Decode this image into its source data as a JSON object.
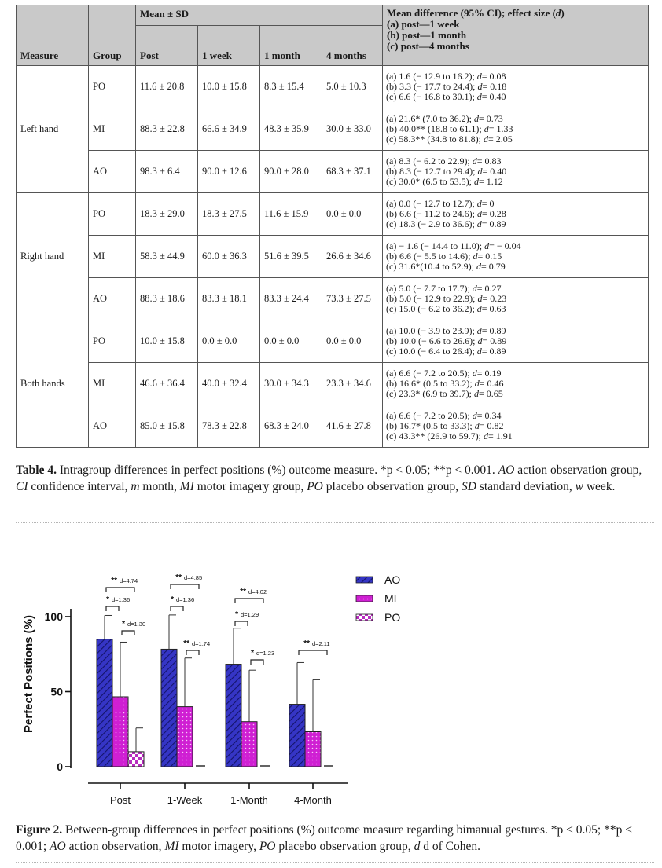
{
  "table": {
    "headers": {
      "measure": "Measure",
      "group": "Group",
      "mean_sd": "Mean ± SD",
      "post": "Post",
      "week1": "1 week",
      "month1": "1 month",
      "months4": "4 months",
      "md_title": "Mean difference (95% CI); effect size (",
      "md_title_d": "d",
      "md_title_end": ")",
      "md_a": "(a) post—1 week",
      "md_b": "(b) post—1 month",
      "md_c": "(c) post—4 months"
    },
    "sections": [
      {
        "measure": "Left hand",
        "rows": [
          {
            "group": "PO",
            "post": "11.6 ± 20.8",
            "w1": "10.0 ± 15.8",
            "m1": "8.3 ± 15.4",
            "m4": "5.0 ± 10.3",
            "a": "(a) 1.6 (− 12.9 to 16.2); ",
            "ad": "= 0.08",
            "b": "(b) 3.3 (− 17.7 to 24.4); ",
            "bd": "= 0.18",
            "c": "(c) 6.6 (− 16.8 to 30.1); ",
            "cd": "= 0.40"
          },
          {
            "group": "MI",
            "post": "88.3 ± 22.8",
            "w1": "66.6 ± 34.9",
            "m1": "48.3 ± 35.9",
            "m4": "30.0 ± 33.0",
            "a": "(a) 21.6* (7.0 to 36.2); ",
            "ad": "= 0.73",
            "b": "(b) 40.0** (18.8 to 61.1); ",
            "bd": "= 1.33",
            "c": "(c) 58.3** (34.8 to 81.8); ",
            "cd": "= 2.05"
          },
          {
            "group": "AO",
            "post": "98.3 ± 6.4",
            "w1": "90.0 ± 12.6",
            "m1": "90.0 ± 28.0",
            "m4": "68.3 ± 37.1",
            "a": "(a) 8.3 (− 6.2 to 22.9); ",
            "ad": "= 0.83",
            "b": "(b) 8.3 (− 12.7 to 29.4); ",
            "bd": "= 0.40",
            "c": "(c) 30.0* (6.5 to 53.5); ",
            "cd": "= 1.12"
          }
        ]
      },
      {
        "measure": "Right hand",
        "rows": [
          {
            "group": "PO",
            "post": "18.3 ± 29.0",
            "w1": "18.3 ± 27.5",
            "m1": "11.6 ± 15.9",
            "m4": "0.0 ± 0.0",
            "a": "(a) 0.0 (− 12.7 to 12.7); ",
            "ad": "= 0",
            "b": "(b) 6.6 (− 11.2 to 24.6); ",
            "bd": "= 0.28",
            "c": "(c) 18.3 (− 2.9 to 36.6); ",
            "cd": "= 0.89"
          },
          {
            "group": "MI",
            "post": "58.3 ± 44.9",
            "w1": "60.0 ± 36.3",
            "m1": "51.6 ± 39.5",
            "m4": "26.6 ± 34.6",
            "a": "(a) − 1.6 (− 14.4 to 11.0); ",
            "ad": "= − 0.04",
            "b": "(b) 6.6 (− 5.5 to 14.6); ",
            "bd": "= 0.15",
            "c": "(c) 31.6*(10.4 to 52.9); ",
            "cd": "= 0.79"
          },
          {
            "group": "AO",
            "post": "88.3 ± 18.6",
            "w1": "83.3 ± 18.1",
            "m1": "83.3 ± 24.4",
            "m4": "73.3 ± 27.5",
            "a": "(a) 5.0 (− 7.7 to 17.7); ",
            "ad": "= 0.27",
            "b": "(b) 5.0 (− 12.9 to 22.9); ",
            "bd": "= 0.23",
            "c": "(c) 15.0 (− 6.2 to 36.2); ",
            "cd": "= 0.63"
          }
        ]
      },
      {
        "measure": "Both hands",
        "rows": [
          {
            "group": "PO",
            "post": "10.0 ± 15.8",
            "w1": "0.0 ± 0.0",
            "m1": "0.0 ± 0.0",
            "m4": "0.0 ± 0.0",
            "a": "(a) 10.0 (− 3.9 to 23.9); ",
            "ad": "= 0.89",
            "b": "(b) 10.0 (− 6.6 to 26.6); ",
            "bd": "= 0.89",
            "c": "(c) 10.0 (− 6.4 to 26.4); ",
            "cd": "= 0.89"
          },
          {
            "group": "MI",
            "post": "46.6 ± 36.4",
            "w1": "40.0 ± 32.4",
            "m1": "30.0 ± 34.3",
            "m4": "23.3 ± 34.6",
            "a": "(a) 6.6 (− 7.2 to 20.5); ",
            "ad": "= 0.19",
            "b": "(b) 16.6* (0.5 to 33.2); ",
            "bd": "= 0.46",
            "c": "(c) 23.3* (6.9 to 39.7); ",
            "cd": "= 0.65"
          },
          {
            "group": "AO",
            "post": "85.0 ± 15.8",
            "w1": "78.3 ± 22.8",
            "m1": "68.3 ± 24.0",
            "m4": "41.6 ± 27.8",
            "a": "(a) 6.6 (− 7.2 to 20.5); ",
            "ad": "= 0.34",
            "b": "(b) 16.7* (0.5 to 33.3); ",
            "bd": "= 0.82",
            "c": "(c) 43.3** (26.9 to 59.7); ",
            "cd": "= 1.91"
          }
        ]
      }
    ],
    "d_letter": "d"
  },
  "table_caption": {
    "label": "Table 4.",
    "t1": " Intragroup differences in perfect positions (%) outcome measure. *p < 0.05; **p < 0.001. ",
    "i1": "AO",
    "t2": " action observation group, ",
    "i2": "CI",
    "t3": " confidence interval, ",
    "i3": "m",
    "t4": " month, ",
    "i4": "MI",
    "t5": " motor imagery group, ",
    "i5": "PO",
    "t6": " placebo observation group, ",
    "i6": "SD",
    "t7": " standard deviation, ",
    "i7": "w",
    "t8": " week."
  },
  "figure_caption": {
    "label": "Figure 2.",
    "t1": " Between-group differences in perfect positions (%) outcome measure regarding bimanual gestures. *p < 0.05; **p < 0.001; ",
    "i1": "AO",
    "t2": " action observation, ",
    "i2": "MI",
    "t3": " motor imagery, ",
    "i3": "PO",
    "t4": " placebo observation group, ",
    "i4": "d",
    "t5": " d of Cohen."
  },
  "chart_data": {
    "type": "bar",
    "ylabel": "Perfect Positions (%)",
    "xlabel": "",
    "ylim": [
      0,
      100
    ],
    "yticks": [
      "0",
      "50",
      "100"
    ],
    "categories": [
      "Post",
      "1-Week",
      "1-Month",
      "4-Month"
    ],
    "series": [
      {
        "name": "AO",
        "values": [
          85.0,
          78.3,
          68.3,
          41.6
        ],
        "sd": [
          15.8,
          22.8,
          24.0,
          27.8
        ],
        "color": "#3a3ac8"
      },
      {
        "name": "MI",
        "values": [
          46.6,
          40.0,
          30.0,
          23.3
        ],
        "sd": [
          36.4,
          32.4,
          34.3,
          34.6
        ],
        "color": "#d21ed6"
      },
      {
        "name": "PO",
        "values": [
          10.0,
          0.0,
          0.0,
          0.0
        ],
        "sd": [
          15.8,
          0.0,
          0.0,
          0.0
        ],
        "color": "#c028c8"
      }
    ],
    "legend_position": "top-right",
    "annotations": [
      {
        "category": "Post",
        "pair": [
          "AO",
          "PO"
        ],
        "stars": "**",
        "label": "d=4.74"
      },
      {
        "category": "Post",
        "pair": [
          "AO",
          "MI"
        ],
        "stars": "*",
        "label": "d=1.36"
      },
      {
        "category": "Post",
        "pair": [
          "MI",
          "PO"
        ],
        "stars": "*",
        "label": "d=1.30"
      },
      {
        "category": "1-Week",
        "pair": [
          "AO",
          "PO"
        ],
        "stars": "**",
        "label": "d=4.85"
      },
      {
        "category": "1-Week",
        "pair": [
          "AO",
          "MI"
        ],
        "stars": "*",
        "label": "d=1.36"
      },
      {
        "category": "1-Week",
        "pair": [
          "MI",
          "PO"
        ],
        "stars": "**",
        "label": "d=1.74"
      },
      {
        "category": "1-Month",
        "pair": [
          "AO",
          "PO"
        ],
        "stars": "**",
        "label": "d=4.02"
      },
      {
        "category": "1-Month",
        "pair": [
          "AO",
          "MI"
        ],
        "stars": "*",
        "label": "d=1.29"
      },
      {
        "category": "1-Month",
        "pair": [
          "MI",
          "PO"
        ],
        "stars": "*",
        "label": "d=1.23"
      },
      {
        "category": "4-Month",
        "pair": [
          "AO",
          "PO"
        ],
        "stars": "**",
        "label": "d=2.11"
      }
    ]
  }
}
